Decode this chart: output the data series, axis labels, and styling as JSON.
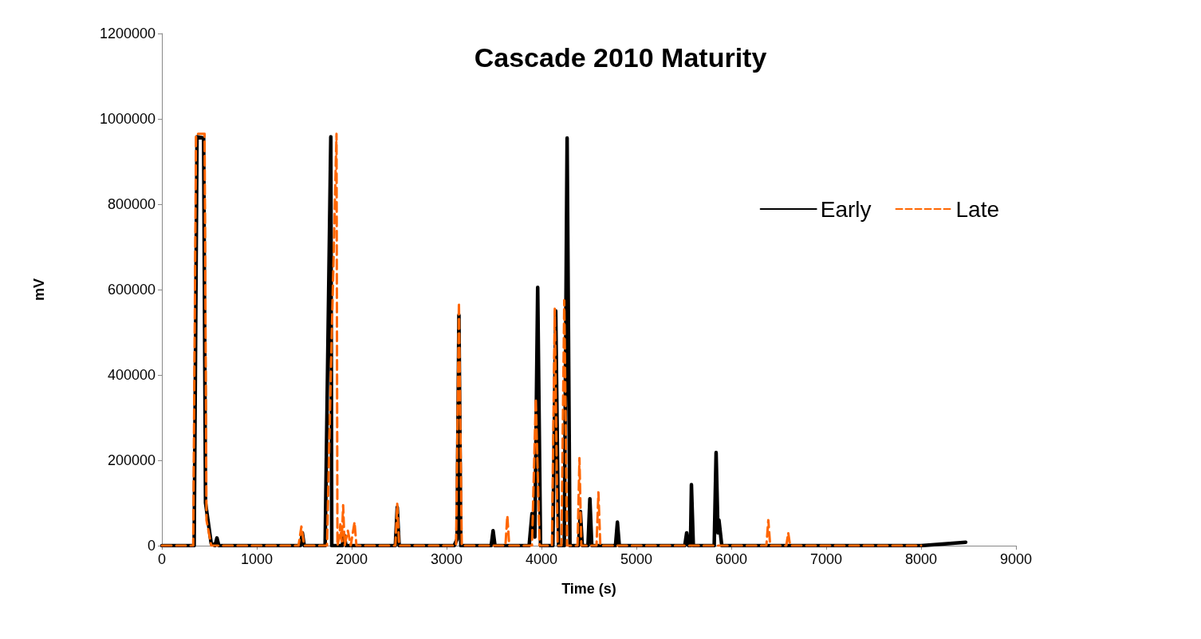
{
  "chart_data": {
    "type": "line",
    "title": "Cascade 2010 Maturity",
    "xlabel": "Time (s)",
    "ylabel": "mV",
    "xlim": [
      0,
      9000
    ],
    "xticks": [
      0,
      1000,
      2000,
      3000,
      4000,
      5000,
      6000,
      7000,
      8000,
      9000
    ],
    "ylim": [
      0,
      1200000
    ],
    "yticks": [
      0,
      200000,
      400000,
      600000,
      800000,
      1000000,
      1200000
    ],
    "grid": false,
    "legend": "top right",
    "marker": "none",
    "series": [
      {
        "name": "Early",
        "color": "#000000",
        "line_style": "solid",
        "x": [
          0,
          340,
          370,
          440,
          460,
          520,
          560,
          580,
          600,
          1400,
          1460,
          1480,
          1500,
          1720,
          1780,
          1790,
          1800,
          1900,
          1920,
          1940,
          2460,
          2480,
          2500,
          3080,
          3110,
          3130,
          3150,
          3470,
          3490,
          3510,
          3870,
          3900,
          3930,
          3960,
          3990,
          4120,
          4150,
          4180,
          4240,
          4270,
          4300,
          4390,
          4410,
          4430,
          4490,
          4510,
          4530,
          4780,
          4800,
          4820,
          5510,
          5530,
          5550,
          5570,
          5580,
          5600,
          5820,
          5840,
          5860,
          5870,
          5900,
          8000,
          8470
        ],
        "values": [
          0,
          0,
          958000,
          955000,
          100000,
          5000,
          0,
          18000,
          0,
          0,
          0,
          30000,
          0,
          0,
          958000,
          0,
          0,
          0,
          25000,
          0,
          0,
          90000,
          0,
          0,
          15000,
          540000,
          0,
          0,
          35000,
          0,
          0,
          75000,
          20000,
          605000,
          0,
          0,
          550000,
          0,
          0,
          955000,
          0,
          0,
          80000,
          0,
          0,
          110000,
          0,
          0,
          55000,
          0,
          0,
          30000,
          0,
          0,
          143000,
          0,
          0,
          218000,
          30000,
          60000,
          0,
          0,
          8000
        ]
      },
      {
        "name": "Late",
        "color": "#ff6600",
        "line_style": "dashed",
        "x": [
          0,
          330,
          360,
          450,
          470,
          520,
          1440,
          1470,
          1500,
          1740,
          1780,
          1840,
          1850,
          1870,
          1880,
          1895,
          1910,
          1925,
          1960,
          1990,
          2030,
          2050,
          2460,
          2480,
          2500,
          3100,
          3130,
          3160,
          3620,
          3640,
          3660,
          3900,
          3940,
          3980,
          4110,
          4140,
          4170,
          4210,
          4240,
          4270,
          4380,
          4400,
          4420,
          4580,
          4600,
          4620,
          6370,
          6390,
          6410,
          6580,
          6600,
          6620,
          8000
        ],
        "values": [
          0,
          0,
          965000,
          965000,
          60000,
          0,
          0,
          45000,
          0,
          0,
          400000,
          965000,
          0,
          20000,
          50000,
          10000,
          95000,
          0,
          35000,
          0,
          55000,
          0,
          0,
          98000,
          0,
          0,
          570000,
          0,
          0,
          70000,
          0,
          0,
          345000,
          0,
          0,
          555000,
          0,
          0,
          575000,
          0,
          0,
          205000,
          0,
          0,
          125000,
          0,
          0,
          60000,
          0,
          0,
          30000,
          0,
          0
        ]
      }
    ]
  }
}
